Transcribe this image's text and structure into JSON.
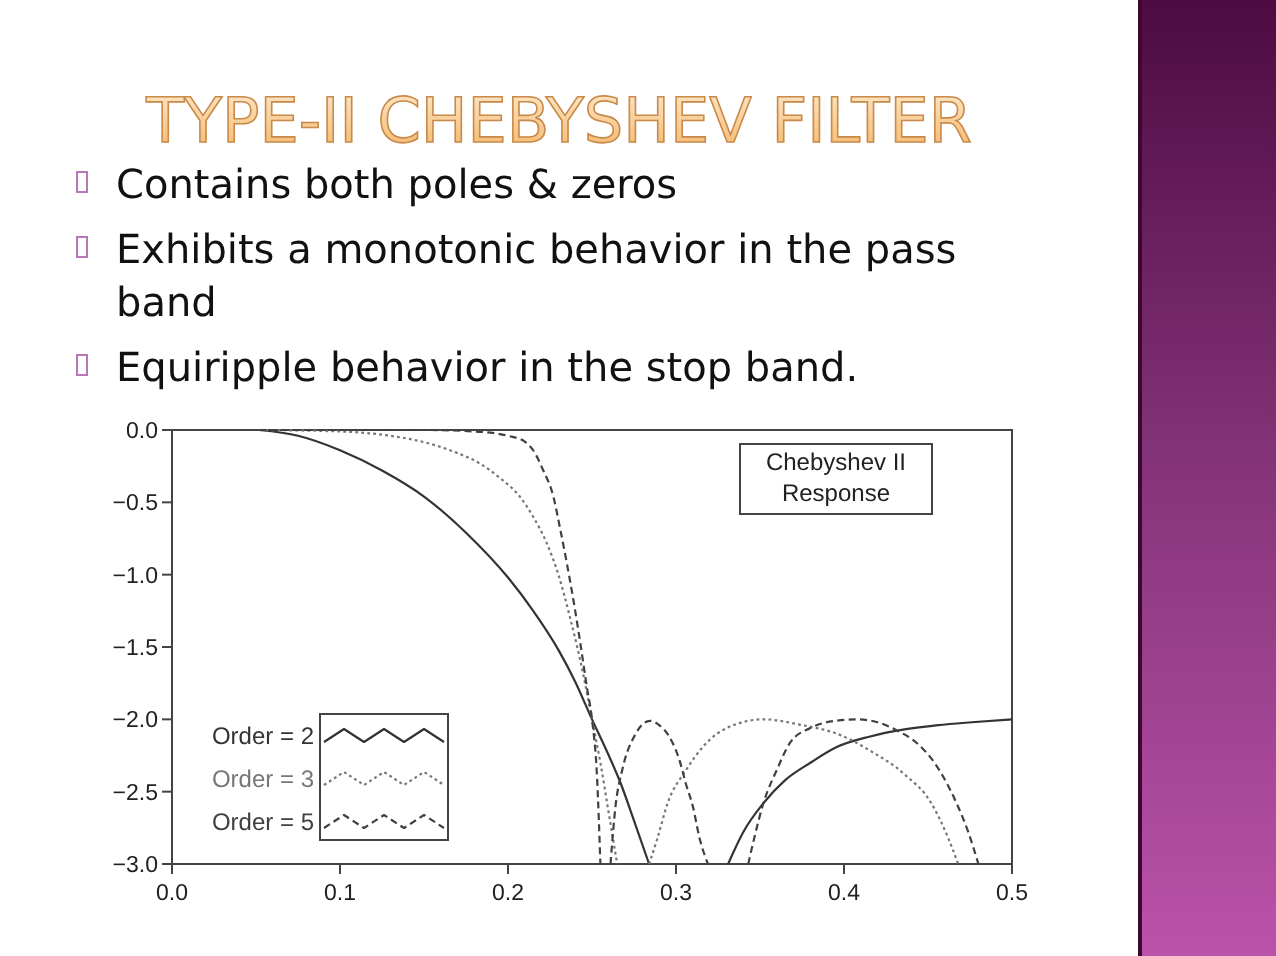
{
  "chart_data": {
    "type": "line",
    "title": "TYPE-II CHEBYSHEV FILTER",
    "annotations": [
      "Contains both poles & zeros",
      "Exhibits a monotonic behavior in the pass band",
      "Equiripple behavior in the stop band.",
      "Chebyshev II\nResponse"
    ],
    "xlim": [
      0,
      0.5
    ],
    "xticks": [
      {
        "value": 0,
        "label": "0.0"
      },
      0.1,
      0.2,
      0.3,
      0.4,
      0.5
    ],
    "ylim": [
      -3,
      0
    ],
    "yticks": [
      {
        "value": -3,
        "label": "−3.0"
      },
      {
        "value": -2.5,
        "label": "−2.5"
      },
      {
        "value": -2,
        "label": "−2.0"
      },
      {
        "value": -1.5,
        "label": "−1.5"
      },
      {
        "value": -1,
        "label": "−1.0"
      },
      {
        "value": -0.5,
        "label": "−0.5"
      },
      {
        "value": 0,
        "label": "0.0"
      }
    ],
    "legend": "bottom left",
    "series": [
      {
        "name": "Order = 2",
        "color": "#333333",
        "line_style": "solid",
        "x": [
          0.052,
          0.075,
          0.1,
          0.125,
          0.15,
          0.175,
          0.2,
          0.215,
          0.23,
          0.24,
          0.25,
          0.26,
          0.267,
          0.275,
          0.284,
          0.31,
          0.331,
          0.34,
          0.352,
          0.365,
          0.38,
          0.396,
          0.415,
          0.436,
          0.456,
          0.476,
          0.5
        ],
        "values": [
          0,
          -0.04,
          -0.14,
          -0.28,
          -0.46,
          -0.71,
          -1.02,
          -1.25,
          -1.52,
          -1.74,
          -2.0,
          -2.25,
          -2.44,
          -2.7,
          -3.0,
          null,
          -3.0,
          -2.78,
          -2.58,
          -2.42,
          -2.3,
          -2.19,
          -2.12,
          -2.07,
          -2.04,
          -2.02,
          -2.0
        ]
      },
      {
        "name": "Order = 3",
        "color": "#777777",
        "line_style": "dotted",
        "x": [
          0.052,
          0.1,
          0.13,
          0.152,
          0.17,
          0.183,
          0.195,
          0.207,
          0.215,
          0.223,
          0.23,
          0.237,
          0.245,
          0.25,
          0.255,
          0.26,
          0.265,
          0.275,
          0.284,
          0.289,
          0.295,
          0.306,
          0.316,
          0.332,
          0.352,
          0.375,
          0.396,
          0.416,
          0.436,
          0.452,
          0.462,
          0.468
        ],
        "values": [
          0,
          -0.01,
          -0.04,
          -0.09,
          -0.16,
          -0.23,
          -0.33,
          -0.46,
          -0.6,
          -0.78,
          -1.0,
          -1.3,
          -1.7,
          -2.0,
          -2.3,
          -2.65,
          -3.0,
          null,
          -3.0,
          -2.82,
          -2.58,
          -2.35,
          -2.19,
          -2.05,
          -2.0,
          -2.04,
          -2.1,
          -2.22,
          -2.38,
          -2.58,
          -2.82,
          -3.0
        ]
      },
      {
        "name": "Order = 5",
        "color": "#404040",
        "line_style": "dashed",
        "x": [
          0.052,
          0.1,
          0.15,
          0.18,
          0.2,
          0.21,
          0.215,
          0.221,
          0.227,
          0.231,
          0.235,
          0.239,
          0.243,
          0.247,
          0.25,
          0.253,
          0.255,
          0.258,
          0.261,
          0.264,
          0.268,
          0.276,
          0.2845,
          0.29,
          0.296,
          0.302,
          0.306,
          0.31,
          0.314,
          0.319,
          0.33,
          0.343,
          0.347,
          0.352,
          0.36,
          0.368,
          0.38,
          0.395,
          0.4075,
          0.42,
          0.432,
          0.443,
          0.455,
          0.467,
          0.474,
          0.48
        ],
        "values": [
          0,
          0,
          0,
          -0.01,
          -0.04,
          -0.08,
          -0.14,
          -0.28,
          -0.46,
          -0.68,
          -0.92,
          -1.18,
          -1.47,
          -1.78,
          -2.0,
          -2.4,
          -3.0,
          null,
          -3.0,
          -2.6,
          -2.35,
          -2.1,
          -2.01,
          -2.04,
          -2.12,
          -2.28,
          -2.45,
          -2.6,
          -2.82,
          -3.0,
          null,
          -3.0,
          -2.8,
          -2.58,
          -2.35,
          -2.16,
          -2.06,
          -2.01,
          -2.0,
          -2.02,
          -2.08,
          -2.16,
          -2.32,
          -2.58,
          -2.78,
          -3.0
        ]
      }
    ]
  }
}
